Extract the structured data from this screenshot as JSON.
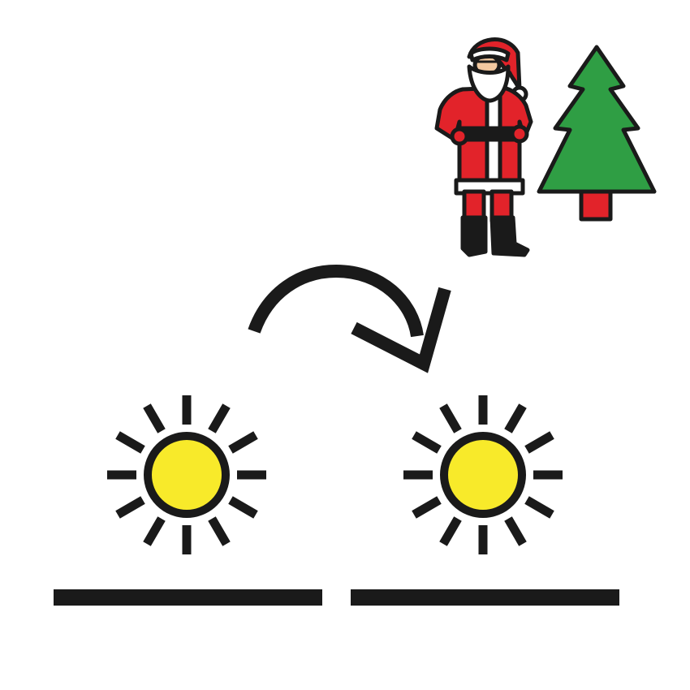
{
  "pictogram": {
    "colors": {
      "outline": "#1a1a1a",
      "sun_fill": "#f8ea2a",
      "santa_red": "#e2232a",
      "santa_white": "#ffffff",
      "santa_skin": "#f3c9a0",
      "tree_green": "#2f9e44",
      "tree_trunk": "#e2232a",
      "boot_black": "#1a1a1a"
    },
    "icons": {
      "santa": "santa-claus-icon",
      "tree": "christmas-tree-icon",
      "arrow": "curved-arrow-right-icon",
      "sun_left": "sun-icon",
      "sun_right": "sun-icon",
      "line_left": "day-line",
      "line_right": "day-line"
    }
  }
}
